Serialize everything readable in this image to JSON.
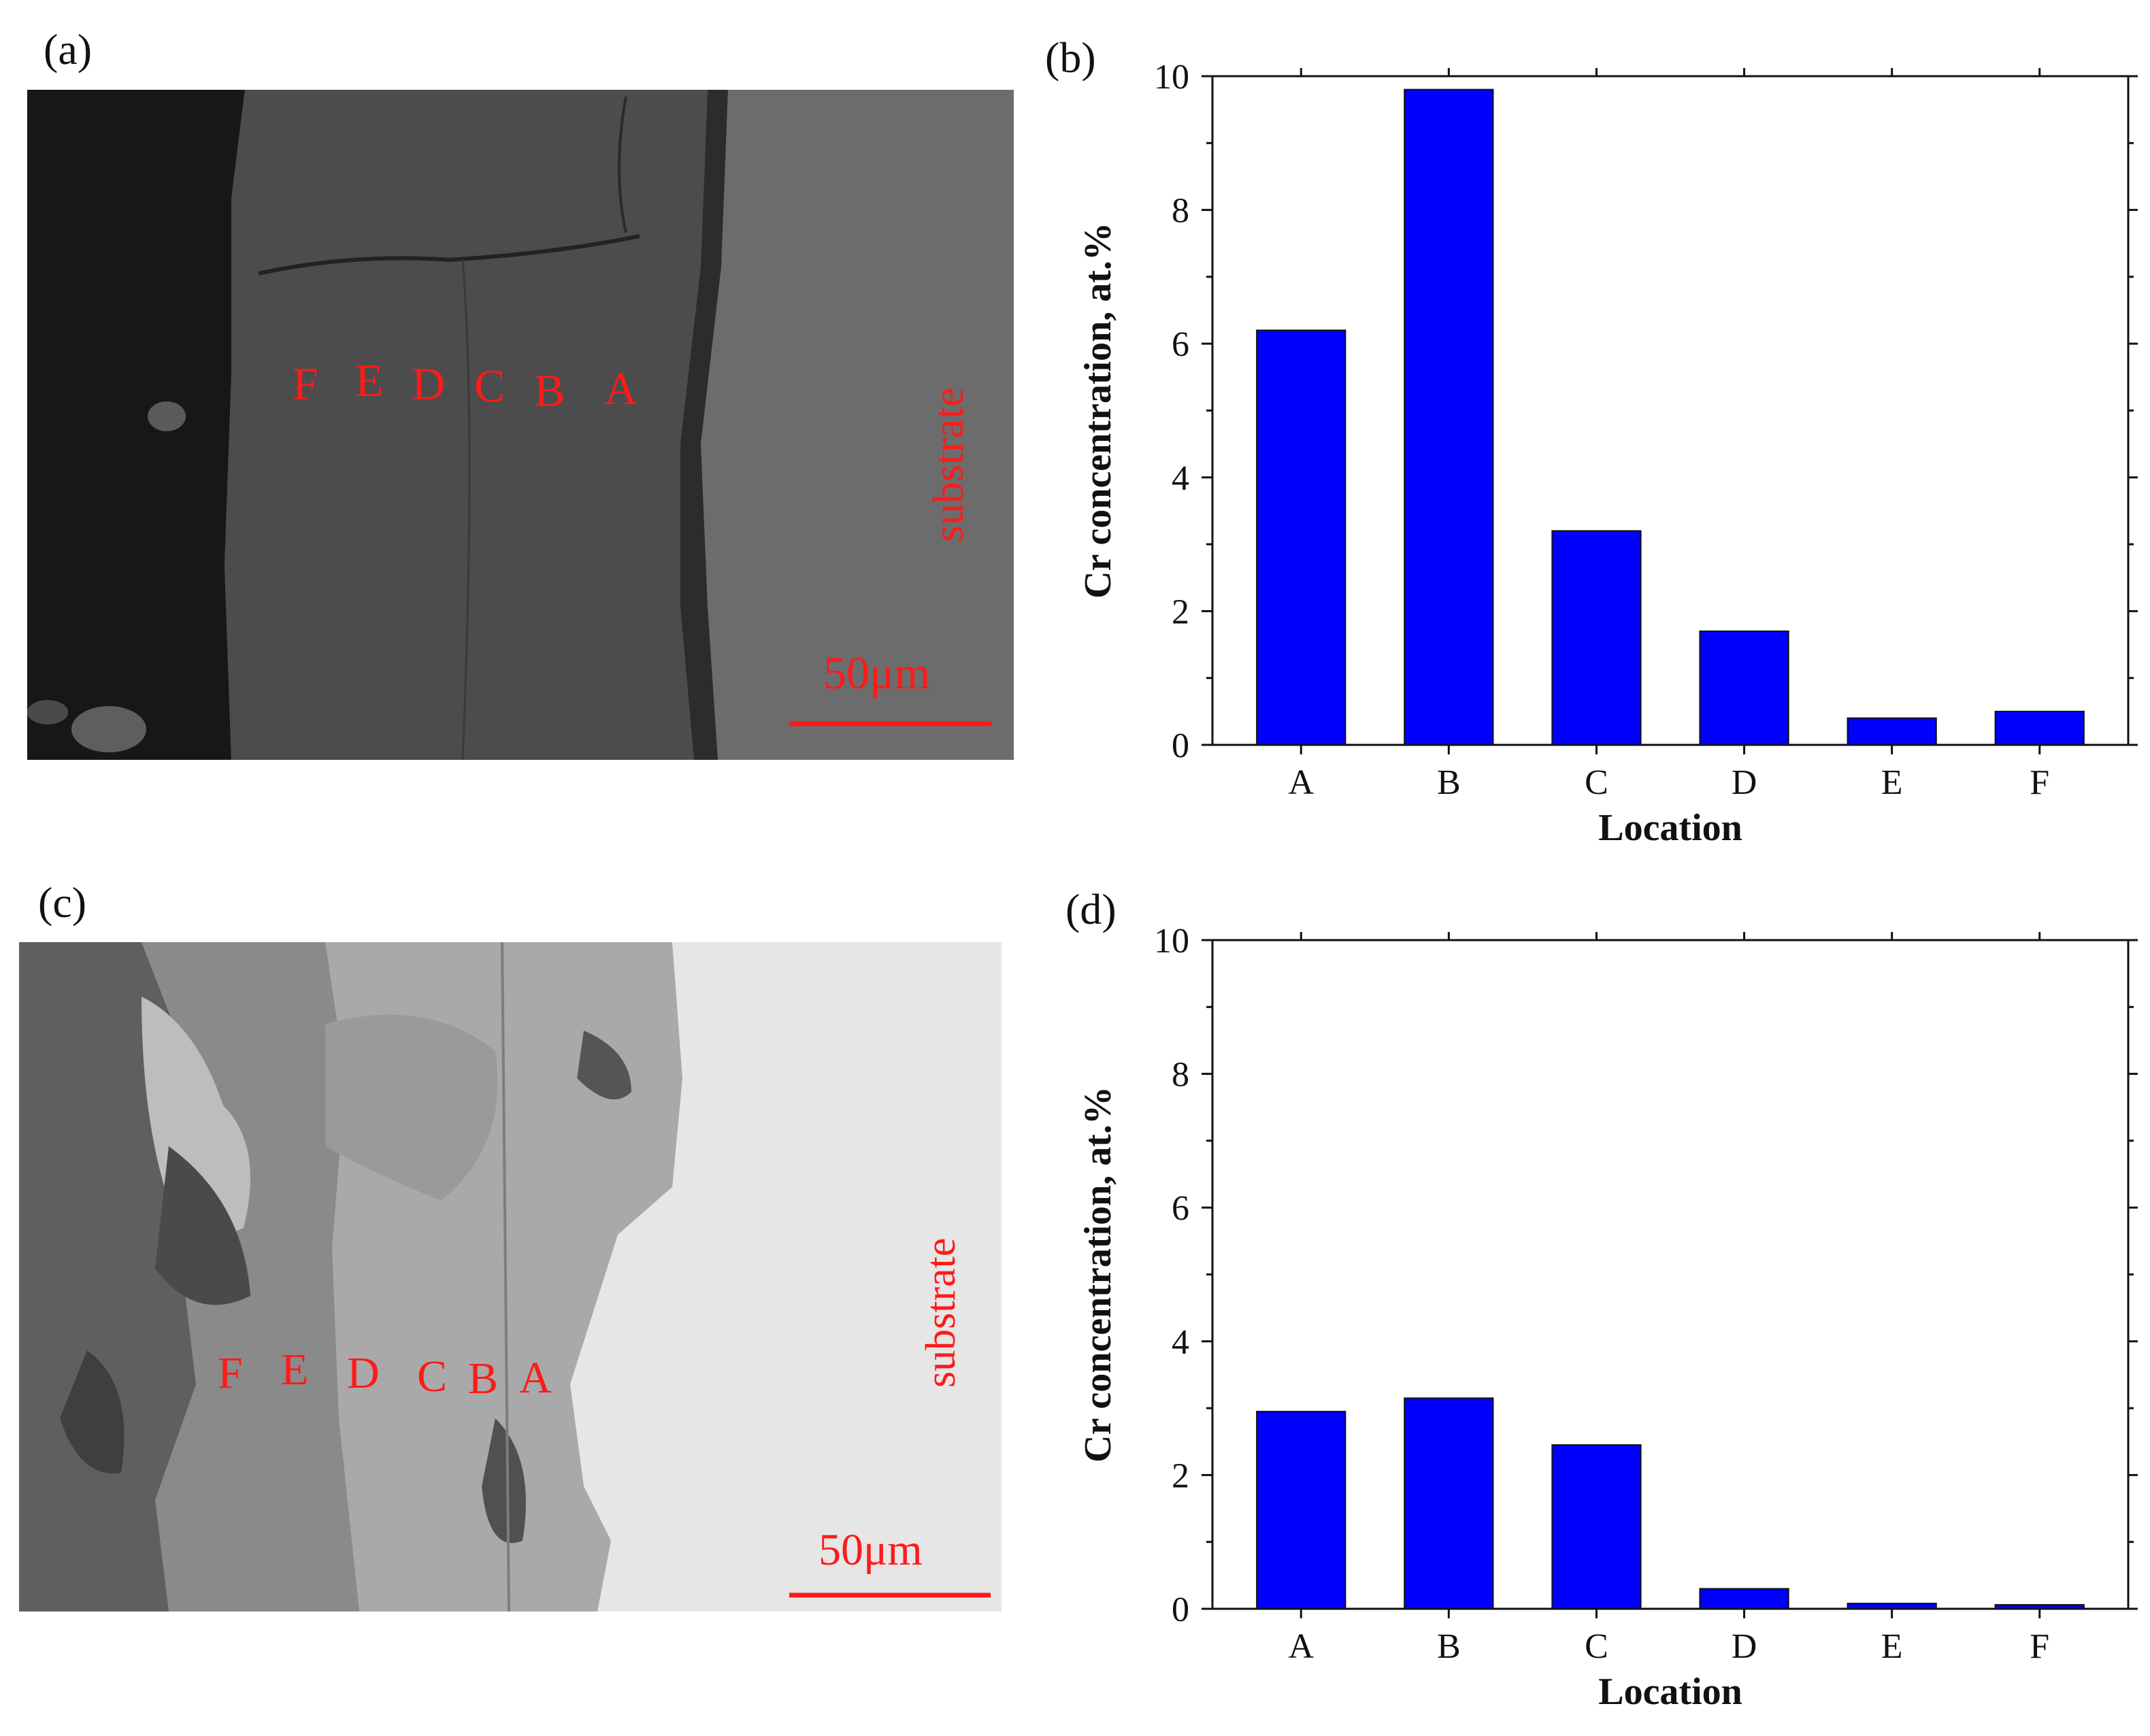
{
  "panels": {
    "a": {
      "label": "(a)"
    },
    "b": {
      "label": "(b)"
    },
    "c": {
      "label": "(c)"
    },
    "d": {
      "label": "(d)"
    }
  },
  "micrograph_top": {
    "location_labels": [
      "F",
      "E",
      "D",
      "C",
      "B",
      "A"
    ],
    "substrate_label": "substrate",
    "scale_bar_label": "50μm"
  },
  "micrograph_bottom": {
    "location_labels": [
      "F",
      "E",
      "D",
      "C",
      "B",
      "A"
    ],
    "substrate_label": "substrate",
    "scale_bar_label": "50μm"
  },
  "colors": {
    "bar": "#0000ff",
    "annotation": "#ff1a1a"
  },
  "chart_data": [
    {
      "type": "bar",
      "panel": "(b)",
      "categories": [
        "A",
        "B",
        "C",
        "D",
        "E",
        "F"
      ],
      "values": [
        6.2,
        9.8,
        3.2,
        1.7,
        0.4,
        0.5
      ],
      "xlabel": "Location",
      "ylabel": "Cr concentration, at.%",
      "ylim": [
        0,
        10
      ],
      "yticks": [
        0,
        2,
        4,
        6,
        8,
        10
      ],
      "grid": false
    },
    {
      "type": "bar",
      "panel": "(d)",
      "categories": [
        "A",
        "B",
        "C",
        "D",
        "E",
        "F"
      ],
      "values": [
        2.95,
        3.15,
        2.45,
        0.3,
        0.08,
        0.06
      ],
      "xlabel": "Location",
      "ylabel": "Cr concentration, at.%",
      "ylim": [
        0,
        10
      ],
      "yticks": [
        0,
        2,
        4,
        6,
        8,
        10
      ],
      "grid": false
    }
  ]
}
